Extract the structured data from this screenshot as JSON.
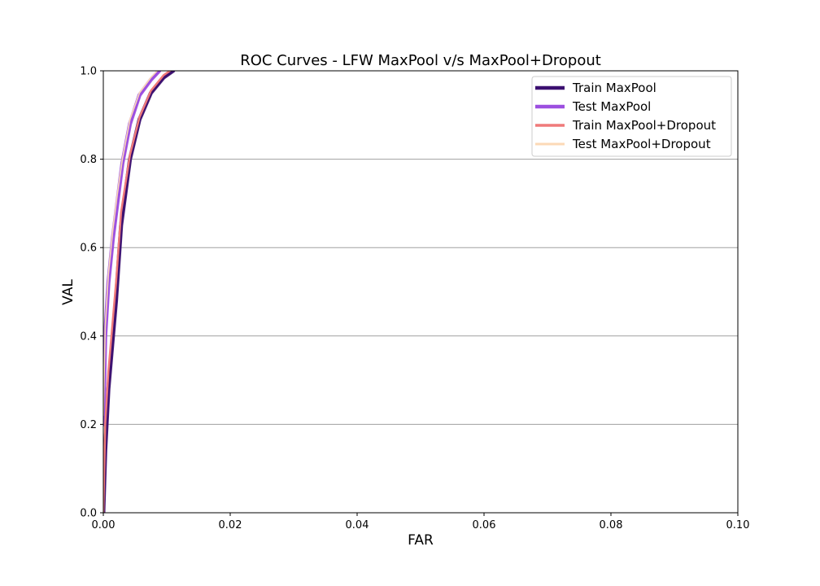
{
  "chart_data": {
    "type": "line",
    "title": "ROC Curves - LFW MaxPool v/s MaxPool+Dropout",
    "xlabel": "FAR",
    "ylabel": "VAL",
    "xlim": [
      0.0,
      0.1
    ],
    "ylim": [
      0.0,
      1.0
    ],
    "xticks": [
      "0.00",
      "0.02",
      "0.04",
      "0.06",
      "0.08",
      "0.10"
    ],
    "yticks": [
      "0.0",
      "0.2",
      "0.4",
      "0.6",
      "0.8",
      "1.0"
    ],
    "grid": "horizontal",
    "legend_position": "upper-right",
    "series": [
      {
        "name": "Train MaxPool",
        "color": "#3b0f70",
        "line_width": "thick",
        "x": [
          0.0,
          0.0003,
          0.0008,
          0.0014,
          0.002,
          0.0028,
          0.0042,
          0.0057,
          0.0075,
          0.0095,
          0.011
        ],
        "y": [
          0.0,
          0.14,
          0.28,
          0.38,
          0.48,
          0.65,
          0.8,
          0.89,
          0.95,
          0.985,
          1.0
        ]
      },
      {
        "name": "Test MaxPool",
        "color": "#9c4fe0",
        "line_width": "thick",
        "x": [
          0.0,
          0.0003,
          0.0008,
          0.0015,
          0.0022,
          0.003,
          0.0042,
          0.0057,
          0.0075,
          0.0088
        ],
        "y": [
          0.2,
          0.4,
          0.52,
          0.62,
          0.7,
          0.79,
          0.88,
          0.945,
          0.98,
          1.0
        ]
      },
      {
        "name": "Train MaxPool+Dropout",
        "color": "#ef7a7a",
        "line_width": "medium",
        "x": [
          0.0,
          0.0003,
          0.0008,
          0.0014,
          0.002,
          0.0028,
          0.0042,
          0.0057,
          0.0075,
          0.0095,
          0.0105
        ],
        "y": [
          0.0,
          0.2,
          0.32,
          0.42,
          0.52,
          0.68,
          0.81,
          0.895,
          0.955,
          0.99,
          1.0
        ]
      },
      {
        "name": "Test MaxPool+Dropout",
        "color": "#fcd9b6",
        "line_width": "thin",
        "x": [
          0.0,
          0.0003,
          0.0008,
          0.0015,
          0.0022,
          0.003,
          0.0042,
          0.0057,
          0.0075,
          0.0085
        ],
        "y": [
          0.22,
          0.42,
          0.54,
          0.64,
          0.72,
          0.8,
          0.89,
          0.95,
          0.985,
          1.0
        ]
      }
    ]
  }
}
